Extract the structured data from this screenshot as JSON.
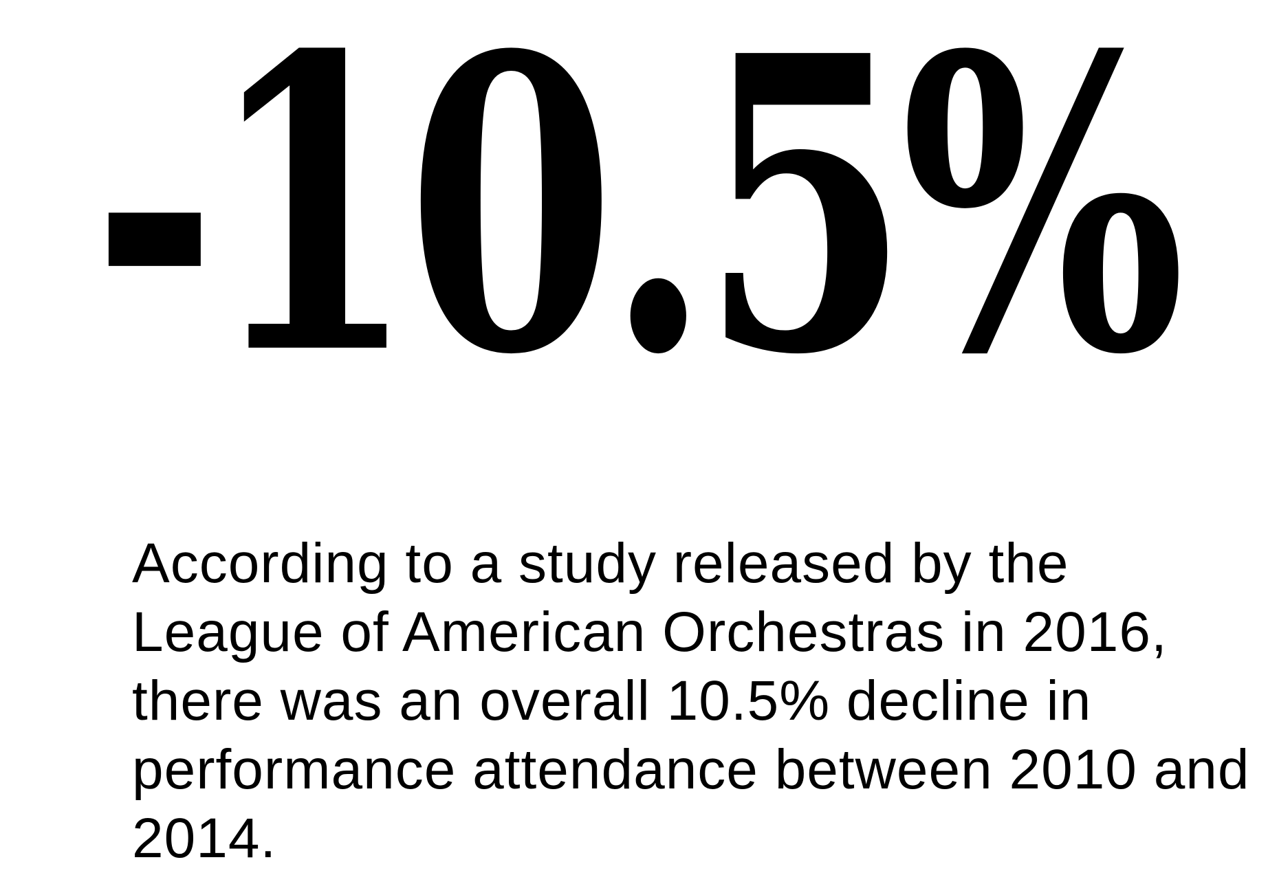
{
  "statistic": {
    "value": "-10.5%"
  },
  "caption": {
    "text": "According to a study released by the League of American Orchestras in 2016, there was an overall 10.5% decline in performance attendance between 2010 and 2014."
  },
  "colors": {
    "background": "#ffffff",
    "text": "#000000"
  }
}
